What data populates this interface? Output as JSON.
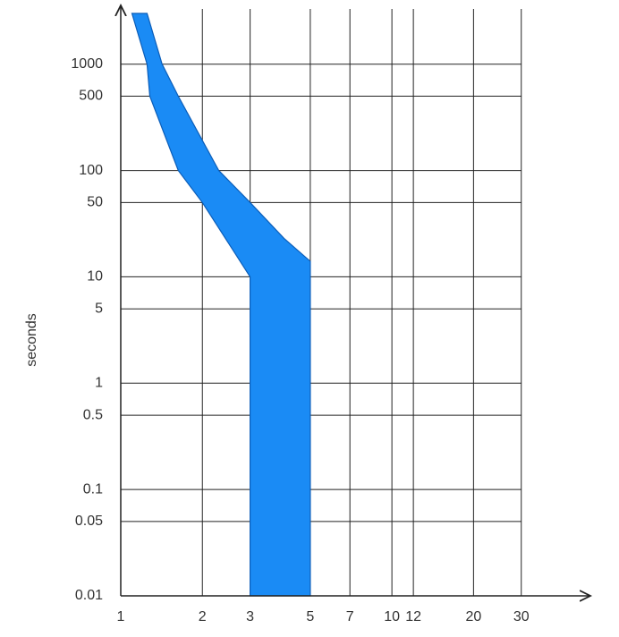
{
  "chart_data": {
    "type": "band",
    "y_label": "seconds",
    "x_scale": "log",
    "y_scale": "log",
    "xlim": [
      1,
      50
    ],
    "xticks": [
      1,
      2,
      3,
      5,
      7,
      10,
      12,
      20,
      30
    ],
    "ylim": [
      0.01,
      3000
    ],
    "yticks": [
      0.01,
      0.05,
      0.1,
      0.5,
      1,
      5,
      10,
      50,
      100,
      500,
      1000
    ],
    "grid": true,
    "color": "#1a8bf5",
    "edge_color": "#0b5db8",
    "band": {
      "x": [
        1.1,
        1.25,
        1.28,
        1.63,
        2,
        3,
        3,
        5,
        5,
        4,
        3,
        2.3,
        1.63,
        1.42,
        1.25
      ],
      "y": [
        3000,
        1000,
        500,
        100,
        50,
        10,
        0.01,
        0.01,
        14,
        23,
        50,
        100,
        500,
        1000,
        3000
      ]
    }
  }
}
